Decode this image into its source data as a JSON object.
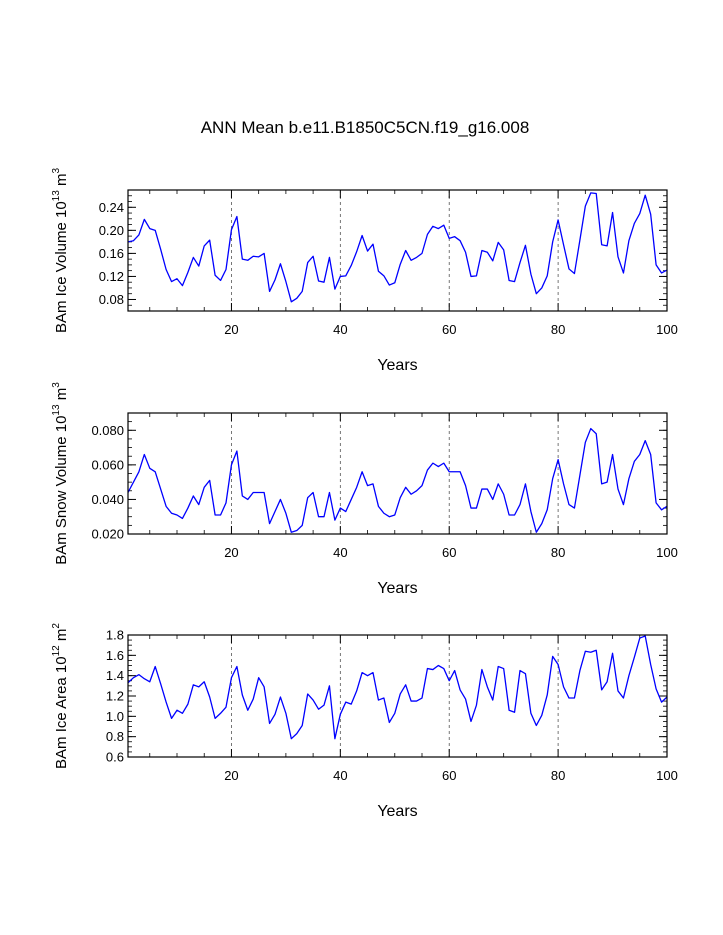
{
  "title": "ANN Mean b.e11.B1850C5CN.f19_g16.008",
  "chart_data": [
    {
      "type": "line",
      "name": "ice-volume",
      "ylabel": {
        "prefix": "BAm Ice Volume 10",
        "exp1": "13",
        "mid": " m",
        "exp2": "3"
      },
      "xlabel": "Years",
      "xlim": [
        1,
        100
      ],
      "ylim": [
        0.06,
        0.27
      ],
      "xticks": [
        20,
        40,
        60,
        80,
        100
      ],
      "yticks": [
        0.08,
        0.12,
        0.16,
        0.2,
        0.24
      ],
      "ytick_labels": [
        "0.08",
        "0.12",
        "0.16",
        "0.20",
        "0.24"
      ],
      "vlines": [
        20,
        40,
        60,
        80
      ],
      "color": "#0000ff",
      "series": [
        {
          "name": "BAm Ice Volume",
          "values": [
            0.18,
            0.182,
            0.192,
            0.219,
            0.203,
            0.2,
            0.167,
            0.132,
            0.111,
            0.116,
            0.104,
            0.127,
            0.153,
            0.138,
            0.173,
            0.183,
            0.122,
            0.113,
            0.132,
            0.201,
            0.224,
            0.15,
            0.148,
            0.155,
            0.154,
            0.16,
            0.094,
            0.114,
            0.142,
            0.111,
            0.076,
            0.082,
            0.094,
            0.144,
            0.155,
            0.112,
            0.11,
            0.153,
            0.098,
            0.12,
            0.121,
            0.139,
            0.163,
            0.191,
            0.164,
            0.176,
            0.129,
            0.121,
            0.105,
            0.109,
            0.141,
            0.165,
            0.148,
            0.153,
            0.16,
            0.193,
            0.207,
            0.203,
            0.209,
            0.186,
            0.189,
            0.182,
            0.162,
            0.12,
            0.121,
            0.165,
            0.162,
            0.147,
            0.179,
            0.166,
            0.113,
            0.111,
            0.144,
            0.174,
            0.124,
            0.09,
            0.1,
            0.121,
            0.18,
            0.218,
            0.175,
            0.133,
            0.125,
            0.183,
            0.242,
            0.265,
            0.264,
            0.175,
            0.173,
            0.231,
            0.154,
            0.126,
            0.182,
            0.212,
            0.229,
            0.261,
            0.228,
            0.14,
            0.126,
            0.131
          ]
        }
      ]
    },
    {
      "type": "line",
      "name": "snow-volume",
      "ylabel": {
        "prefix": "BAm Snow Volume 10",
        "exp1": "13",
        "mid": " m",
        "exp2": "3"
      },
      "xlabel": "Years",
      "xlim": [
        1,
        100
      ],
      "ylim": [
        0.02,
        0.09
      ],
      "xticks": [
        20,
        40,
        60,
        80,
        100
      ],
      "yticks": [
        0.02,
        0.04,
        0.06,
        0.08
      ],
      "ytick_labels": [
        "0.020",
        "0.040",
        "0.060",
        "0.080"
      ],
      "vlines": [
        20,
        40,
        60,
        80
      ],
      "color": "#0000ff",
      "series": [
        {
          "name": "BAm Snow Volume",
          "values": [
            0.044,
            0.05,
            0.056,
            0.066,
            0.058,
            0.056,
            0.046,
            0.036,
            0.032,
            0.031,
            0.029,
            0.035,
            0.042,
            0.037,
            0.047,
            0.051,
            0.031,
            0.031,
            0.038,
            0.06,
            0.068,
            0.042,
            0.04,
            0.044,
            0.044,
            0.044,
            0.026,
            0.033,
            0.04,
            0.032,
            0.021,
            0.022,
            0.025,
            0.041,
            0.044,
            0.03,
            0.03,
            0.044,
            0.028,
            0.035,
            0.033,
            0.04,
            0.047,
            0.056,
            0.048,
            0.049,
            0.036,
            0.032,
            0.03,
            0.031,
            0.041,
            0.047,
            0.043,
            0.045,
            0.048,
            0.057,
            0.061,
            0.059,
            0.061,
            0.056,
            0.056,
            0.056,
            0.048,
            0.035,
            0.035,
            0.046,
            0.046,
            0.04,
            0.049,
            0.043,
            0.031,
            0.031,
            0.037,
            0.049,
            0.033,
            0.021,
            0.026,
            0.034,
            0.052,
            0.063,
            0.049,
            0.037,
            0.035,
            0.054,
            0.073,
            0.081,
            0.078,
            0.049,
            0.05,
            0.066,
            0.046,
            0.037,
            0.052,
            0.062,
            0.066,
            0.074,
            0.066,
            0.038,
            0.034,
            0.036
          ]
        }
      ]
    },
    {
      "type": "line",
      "name": "ice-area",
      "ylabel": {
        "prefix": "BAm Ice Area 10",
        "exp1": "12",
        "mid": " m",
        "exp2": "2"
      },
      "xlabel": "Years",
      "xlim": [
        1,
        100
      ],
      "ylim": [
        0.6,
        1.8
      ],
      "xticks": [
        20,
        40,
        60,
        80,
        100
      ],
      "yticks": [
        0.6,
        0.8,
        1.0,
        1.2,
        1.4,
        1.6,
        1.8
      ],
      "ytick_labels": [
        "0.6",
        "0.8",
        "1.0",
        "1.2",
        "1.4",
        "1.6",
        "1.8"
      ],
      "vlines": [
        20,
        40,
        60,
        80
      ],
      "color": "#0000ff",
      "series": [
        {
          "name": "BAm Ice Area",
          "values": [
            1.33,
            1.38,
            1.41,
            1.37,
            1.34,
            1.49,
            1.32,
            1.14,
            0.98,
            1.06,
            1.03,
            1.12,
            1.31,
            1.29,
            1.34,
            1.19,
            0.98,
            1.03,
            1.09,
            1.38,
            1.49,
            1.21,
            1.06,
            1.17,
            1.38,
            1.29,
            0.93,
            1.02,
            1.19,
            1.03,
            0.78,
            0.83,
            0.91,
            1.22,
            1.16,
            1.07,
            1.11,
            1.3,
            0.78,
            1.02,
            1.14,
            1.12,
            1.25,
            1.43,
            1.4,
            1.43,
            1.16,
            1.18,
            0.94,
            1.03,
            1.22,
            1.31,
            1.15,
            1.15,
            1.18,
            1.47,
            1.46,
            1.5,
            1.47,
            1.35,
            1.45,
            1.26,
            1.17,
            0.95,
            1.11,
            1.46,
            1.29,
            1.16,
            1.49,
            1.47,
            1.06,
            1.04,
            1.45,
            1.42,
            1.03,
            0.91,
            1.01,
            1.21,
            1.59,
            1.51,
            1.29,
            1.18,
            1.18,
            1.45,
            1.64,
            1.63,
            1.65,
            1.26,
            1.34,
            1.62,
            1.25,
            1.18,
            1.4,
            1.58,
            1.77,
            1.79,
            1.51,
            1.27,
            1.14,
            1.19
          ]
        }
      ]
    }
  ]
}
